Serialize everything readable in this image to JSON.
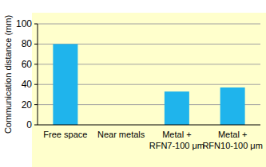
{
  "chart_data": {
    "type": "bar",
    "y_label": "Communication distance (mm)",
    "categories": [
      "Free space",
      "Near metals",
      "Metal + RFN7-100 μm",
      "Metal + RFN10-100 μm"
    ],
    "values": [
      80,
      0,
      33,
      37
    ],
    "color": "#1fb4ec",
    "ylim": [
      0,
      100
    ],
    "yticks": [
      0,
      20,
      40,
      60,
      80,
      100
    ],
    "grid": true
  }
}
